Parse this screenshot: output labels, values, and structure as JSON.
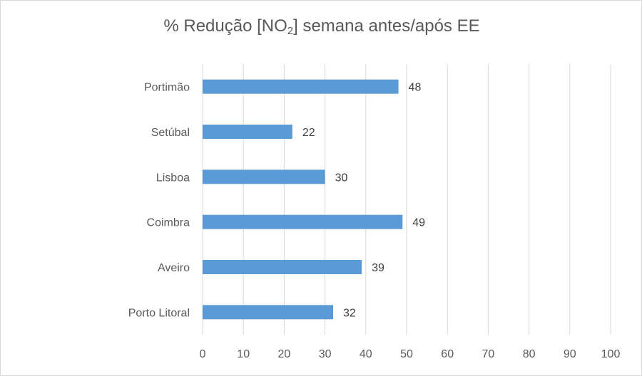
{
  "chart_data": {
    "type": "bar",
    "orientation": "horizontal",
    "title": {
      "prefix": "% Redução [NO",
      "subscript": "2",
      "suffix": "] semana antes/após EE"
    },
    "categories": [
      "Portimão",
      "Setúbal",
      "Lisboa",
      "Coimbra",
      "Aveiro",
      "Porto Litoral"
    ],
    "values": [
      48,
      22,
      30,
      49,
      39,
      32
    ],
    "data_labels": [
      "48",
      "22",
      "30",
      "49",
      "39",
      "32"
    ],
    "xlim": [
      0,
      100
    ],
    "ticks": [
      "0",
      "10",
      "20",
      "30",
      "40",
      "50",
      "60",
      "70",
      "80",
      "90",
      "100"
    ],
    "grid": "vertical",
    "bar_color": "#5b9bd5",
    "grid_color": "#d9d9d9"
  }
}
